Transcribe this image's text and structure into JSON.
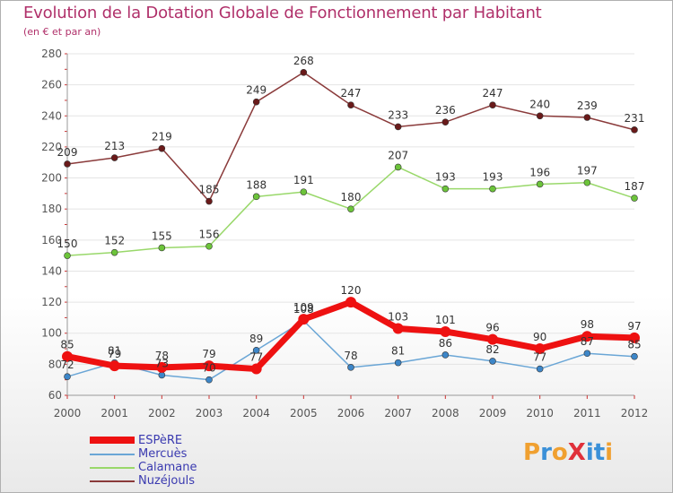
{
  "title": "Evolution de la Dotation Globale de Fonctionnement par Habitant",
  "subtitle": "(en € et par an)",
  "logo": "ProXiti",
  "colors": {
    "title": "#b0306a",
    "axis_text": "#555555",
    "grid": "#e4e4e4",
    "logo": [
      "#f0a030",
      "#3a90d8",
      "#f0a030",
      "#e0303a",
      "#3a90d8",
      "#3a90d8",
      "#f0a030"
    ]
  },
  "chart_data": {
    "type": "line",
    "title": "Evolution de la Dotation Globale de Fonctionnement par Habitant",
    "subtitle": "(en € et par an)",
    "xlabel": "",
    "ylabel": "",
    "x": [
      "2000",
      "2001",
      "2002",
      "2003",
      "2004",
      "2005",
      "2006",
      "2007",
      "2008",
      "2009",
      "2010",
      "2011",
      "2012"
    ],
    "ylim": [
      60,
      280
    ],
    "yticks": [
      60,
      80,
      100,
      120,
      140,
      160,
      180,
      200,
      220,
      240,
      260,
      280
    ],
    "grid": true,
    "legend_position": "bottom-left",
    "series": [
      {
        "name": "ESPèRE",
        "color": "#ee1111",
        "marker_color": "#ee1111",
        "width": 7,
        "values": [
          85,
          79,
          78,
          79,
          77,
          109,
          120,
          103,
          101,
          96,
          90,
          98,
          97
        ],
        "labels": [
          "85",
          "79",
          "78",
          "79",
          "77",
          "109",
          "120",
          "103",
          "101",
          "96",
          "90",
          "98",
          "97"
        ]
      },
      {
        "name": "Mercuès",
        "color": "#6aa6d6",
        "marker_color": "#3d86c8",
        "width": 1.5,
        "values": [
          72,
          81,
          73,
          70,
          89,
          108,
          78,
          81,
          86,
          82,
          77,
          87,
          85
        ],
        "labels": [
          "72",
          "81",
          "73",
          "70",
          "89",
          "108",
          "78",
          "81",
          "86",
          "82",
          "77",
          "87",
          "85"
        ]
      },
      {
        "name": "Calamane",
        "color": "#99d86a",
        "marker_color": "#6cc43a",
        "width": 1.5,
        "values": [
          150,
          152,
          155,
          156,
          188,
          191,
          180,
          207,
          193,
          193,
          196,
          197,
          187
        ],
        "labels": [
          "150",
          "152",
          "155",
          "156",
          "188",
          "191",
          "180",
          "207",
          "193",
          "193",
          "196",
          "197",
          "187"
        ]
      },
      {
        "name": "Nuzéjouls",
        "color": "#8a3a3a",
        "marker_color": "#6a1a1a",
        "width": 1.5,
        "values": [
          209,
          213,
          219,
          185,
          249,
          268,
          247,
          233,
          236,
          247,
          240,
          239,
          231
        ],
        "labels": [
          "209",
          "213",
          "219",
          "185",
          "249",
          "268",
          "247",
          "233",
          "236",
          "247",
          "240",
          "239",
          "231"
        ]
      }
    ]
  }
}
